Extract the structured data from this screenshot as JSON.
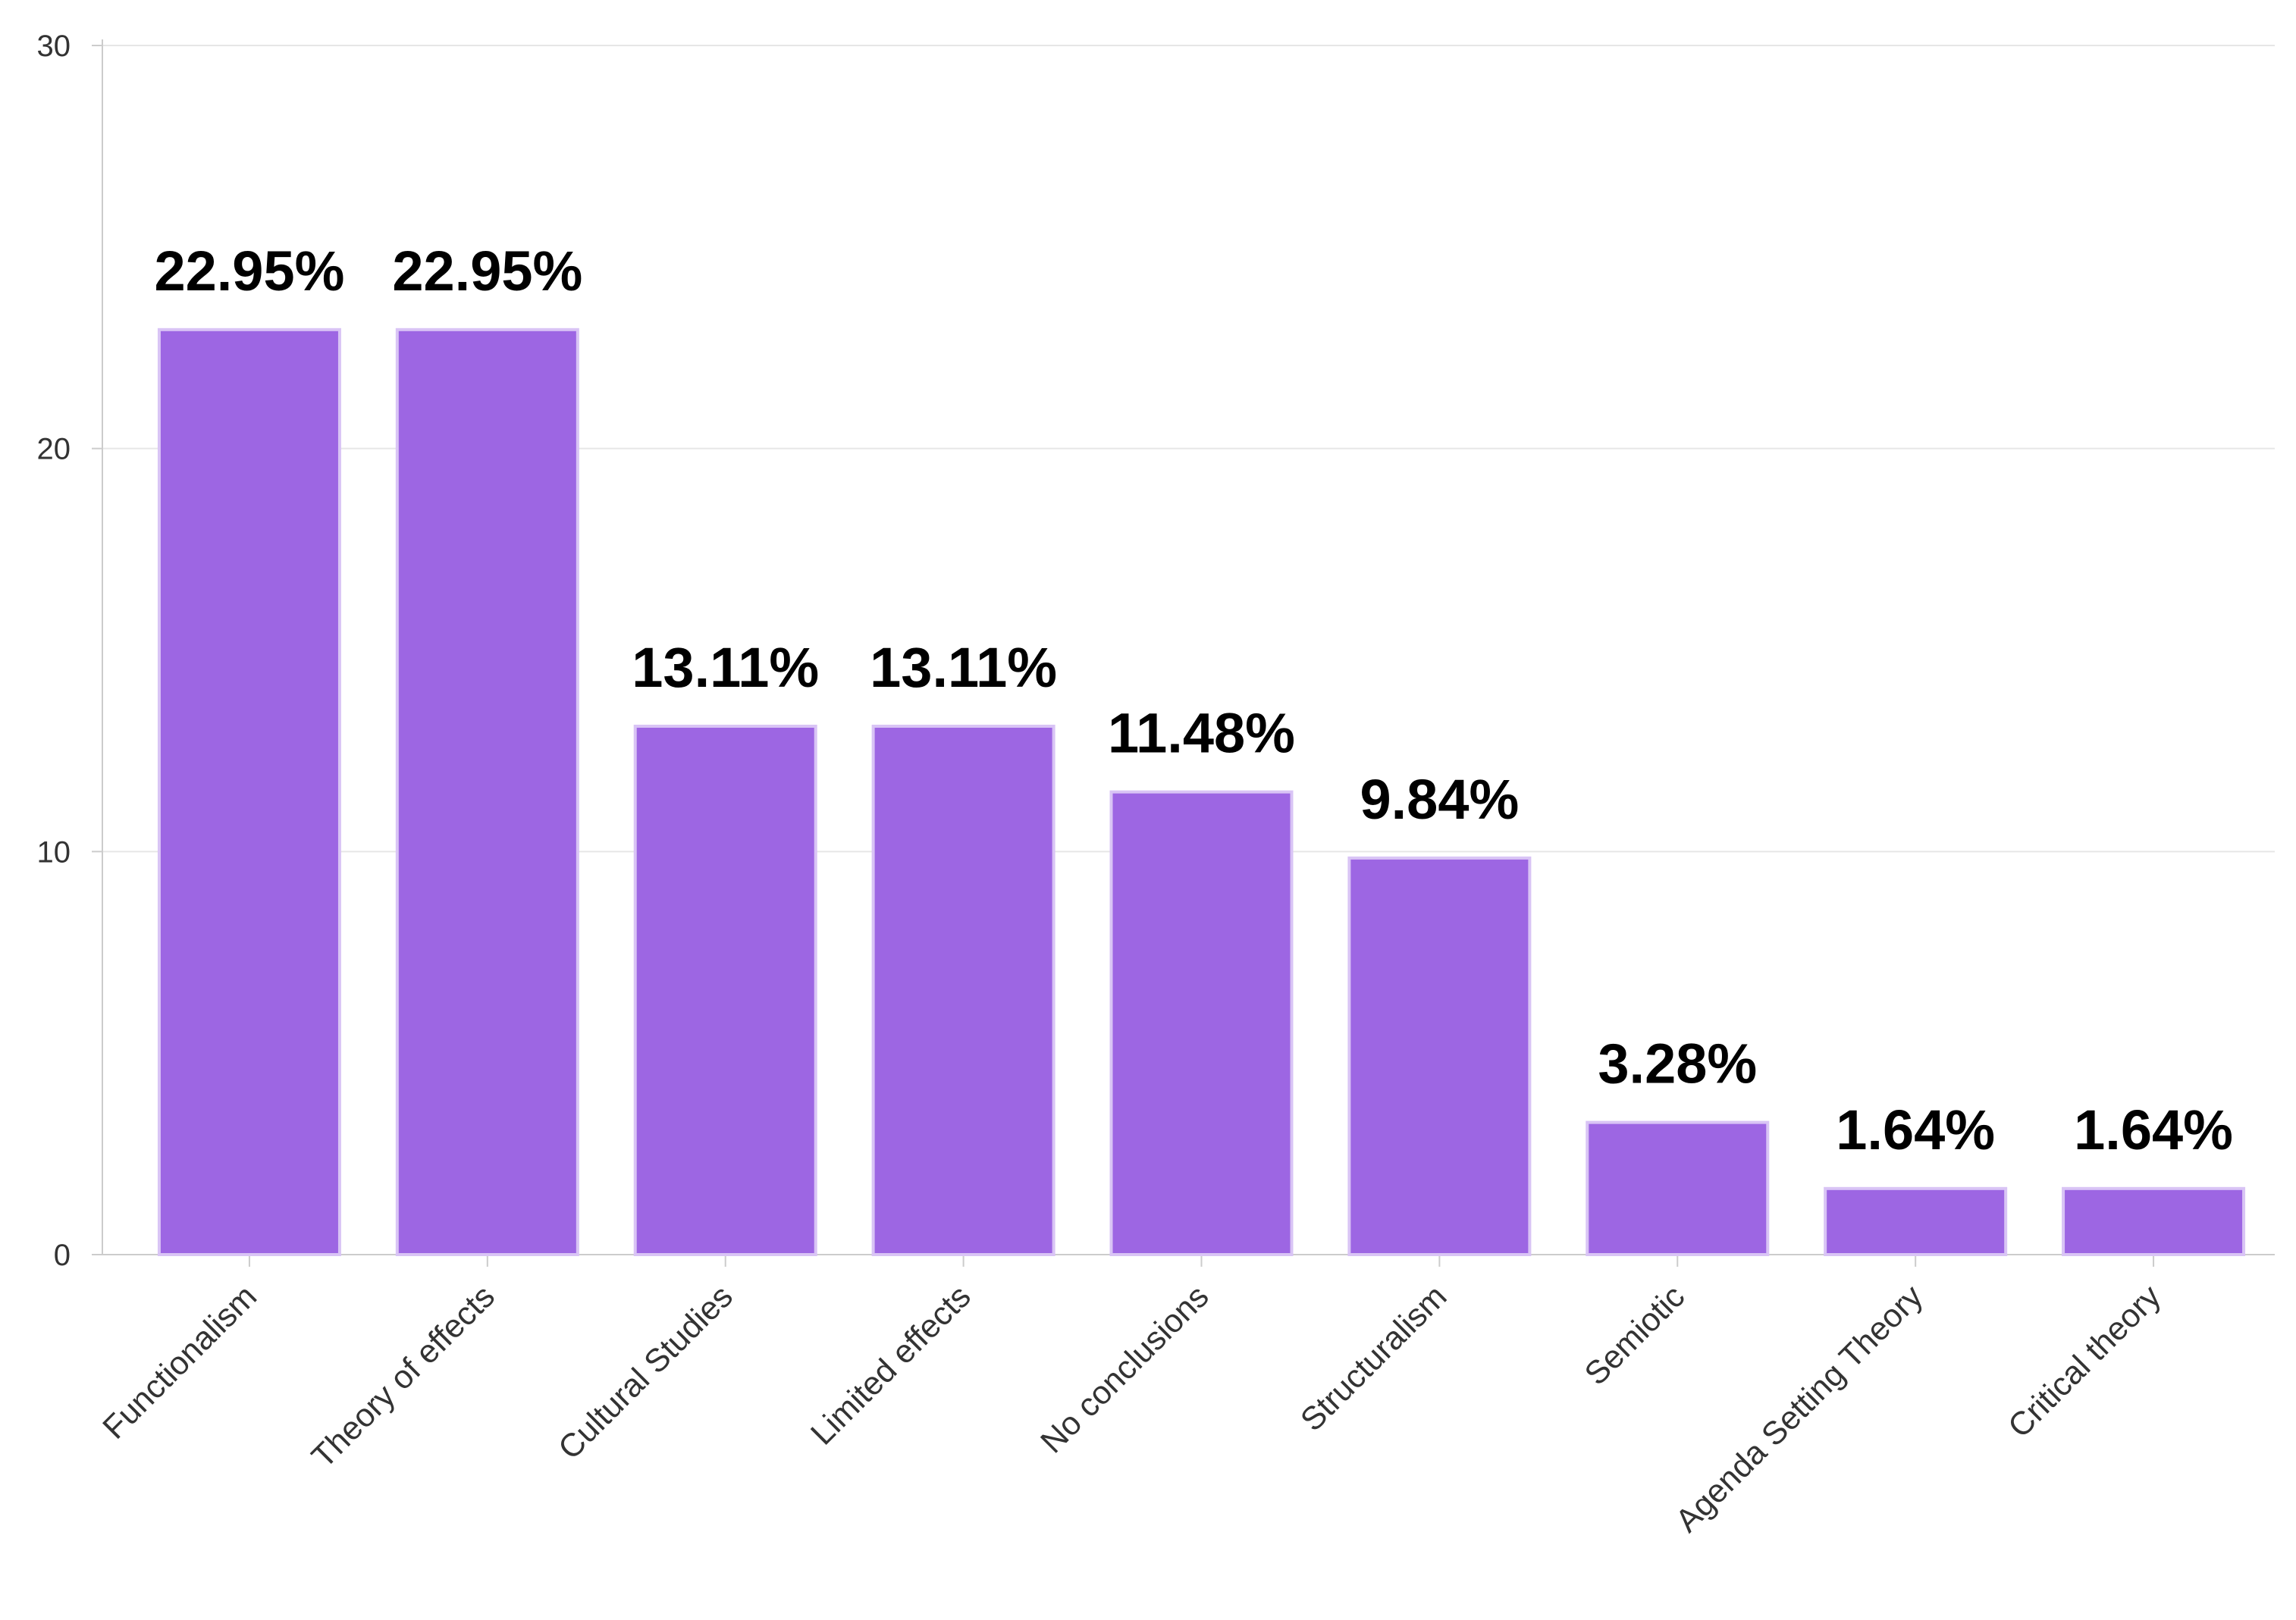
{
  "chart_data": {
    "type": "bar",
    "title": "",
    "xlabel": "",
    "ylabel": "",
    "categories": [
      "Functionalism",
      "Theory of effects",
      "Cultural Studies",
      "Limited effects",
      "No conclusions",
      "Structuralism",
      "Semiotic",
      "Agenda Setting Theory",
      "Critical theory"
    ],
    "values": [
      22.95,
      22.95,
      13.11,
      13.11,
      11.48,
      9.84,
      3.28,
      1.64,
      1.64
    ],
    "data_labels": [
      "22.95%",
      "22.95%",
      "13.11%",
      "13.11%",
      "11.48%",
      "9.84%",
      "3.28%",
      "1.64%",
      "1.64%"
    ],
    "ylim": [
      0,
      30
    ],
    "yticks": [
      0,
      10,
      20,
      30
    ],
    "grid": true,
    "legend": "none",
    "colors": {
      "bar_fill": "#9d66e3",
      "bar_stroke": "#d9c4f5",
      "grid": "#e6e6e6",
      "axis": "#cccccc"
    }
  }
}
